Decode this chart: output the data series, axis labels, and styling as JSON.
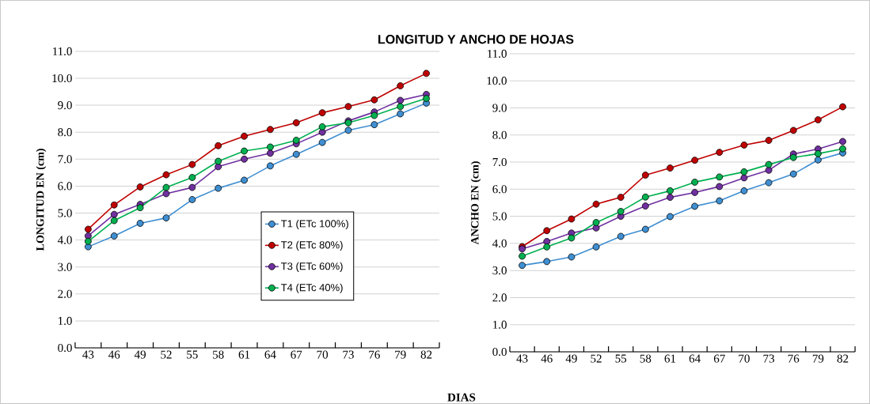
{
  "chart_data": [
    {
      "type": "line",
      "title": "LONGITUD  Y ANCHO DE HOJAS",
      "ylabel": "LONGITUD EN  (cm)",
      "categories": [
        "43",
        "46",
        "49",
        "52",
        "55",
        "58",
        "61",
        "64",
        "67",
        "70",
        "73",
        "76",
        "79",
        "82"
      ],
      "series": [
        {
          "name": "T1 (ETc 100%)",
          "color": "#3f8fd2",
          "values": [
            3.75,
            4.15,
            4.62,
            4.82,
            5.5,
            5.92,
            6.22,
            6.75,
            7.18,
            7.62,
            8.07,
            8.28,
            8.68,
            9.08
          ]
        },
        {
          "name": "T2 (ETc 80%)",
          "color": "#c00000",
          "values": [
            4.4,
            5.3,
            5.97,
            6.42,
            6.8,
            7.5,
            7.85,
            8.1,
            8.35,
            8.72,
            8.95,
            9.2,
            9.72,
            10.18
          ]
        },
        {
          "name": "T3 (ETc 60%)",
          "color": "#7030a0",
          "values": [
            4.15,
            4.95,
            5.32,
            5.72,
            5.95,
            6.72,
            7.0,
            7.22,
            7.57,
            8.0,
            8.42,
            8.75,
            9.18,
            9.4
          ]
        },
        {
          "name": "T4 (ETc 40%)",
          "color": "#00b050",
          "values": [
            3.95,
            4.72,
            5.2,
            5.95,
            6.32,
            6.92,
            7.3,
            7.45,
            7.7,
            8.2,
            8.35,
            8.62,
            8.95,
            9.25
          ]
        }
      ],
      "ylim": [
        0,
        11
      ],
      "yticks": [
        {
          "value": 0,
          "label": "0.0"
        },
        {
          "value": 1,
          "label": "1.0"
        },
        {
          "value": 2,
          "label": "2.0"
        },
        {
          "value": 3,
          "label": "3.0"
        },
        {
          "value": 4,
          "label": "4.0"
        },
        {
          "value": 5,
          "label": "5.0"
        },
        {
          "value": 6,
          "label": "6.0"
        },
        {
          "value": 7,
          "label": "7.0"
        },
        {
          "value": 8,
          "label": "8.0"
        },
        {
          "value": 9,
          "label": "9.0"
        },
        {
          "value": 10,
          "label": "10.0"
        },
        {
          "value": 11,
          "label": "11.0"
        }
      ],
      "grid": "y",
      "legend": "bottom right",
      "marker": "circle"
    },
    {
      "type": "line",
      "xlabel": "DIAS",
      "ylabel": "ANCHO  EN  (cm)",
      "categories": [
        "43",
        "46",
        "49",
        "52",
        "55",
        "58",
        "61",
        "64",
        "67",
        "70",
        "73",
        "76",
        "79",
        "82"
      ],
      "series": [
        {
          "color": "#3f8fd2",
          "values": [
            3.19,
            3.33,
            3.5,
            3.87,
            4.26,
            4.52,
            4.99,
            5.37,
            5.57,
            5.94,
            6.24,
            6.56,
            7.08,
            7.34
          ]
        },
        {
          "color": "#c00000",
          "values": [
            3.88,
            4.47,
            4.9,
            5.45,
            5.7,
            6.52,
            6.78,
            7.07,
            7.36,
            7.63,
            7.8,
            8.17,
            8.56,
            9.04
          ]
        },
        {
          "color": "#7030a0",
          "values": [
            3.8,
            4.07,
            4.38,
            4.57,
            5.0,
            5.38,
            5.7,
            5.88,
            6.1,
            6.42,
            6.7,
            7.3,
            7.48,
            7.76
          ]
        },
        {
          "color": "#00b050",
          "values": [
            3.53,
            3.87,
            4.2,
            4.77,
            5.18,
            5.71,
            5.94,
            6.26,
            6.45,
            6.64,
            6.91,
            7.17,
            7.31,
            7.49
          ]
        }
      ],
      "ylim": [
        0,
        11
      ],
      "yticks": [
        {
          "value": 0,
          "label": "0.0"
        },
        {
          "value": 1,
          "label": "1.0"
        },
        {
          "value": 2,
          "label": "2.0"
        },
        {
          "value": 3,
          "label": "3.0"
        },
        {
          "value": 4,
          "label": "4.0"
        },
        {
          "value": 5,
          "label": "5.0"
        },
        {
          "value": 6,
          "label": "6.0"
        },
        {
          "value": 7,
          "label": "7.0"
        },
        {
          "value": 8,
          "label": "8.0"
        },
        {
          "value": 9,
          "label": "9.0"
        },
        {
          "value": 10,
          "label": "10.0"
        },
        {
          "value": 11,
          "label": "11.0"
        }
      ],
      "grid": "y",
      "marker": "circle"
    }
  ]
}
